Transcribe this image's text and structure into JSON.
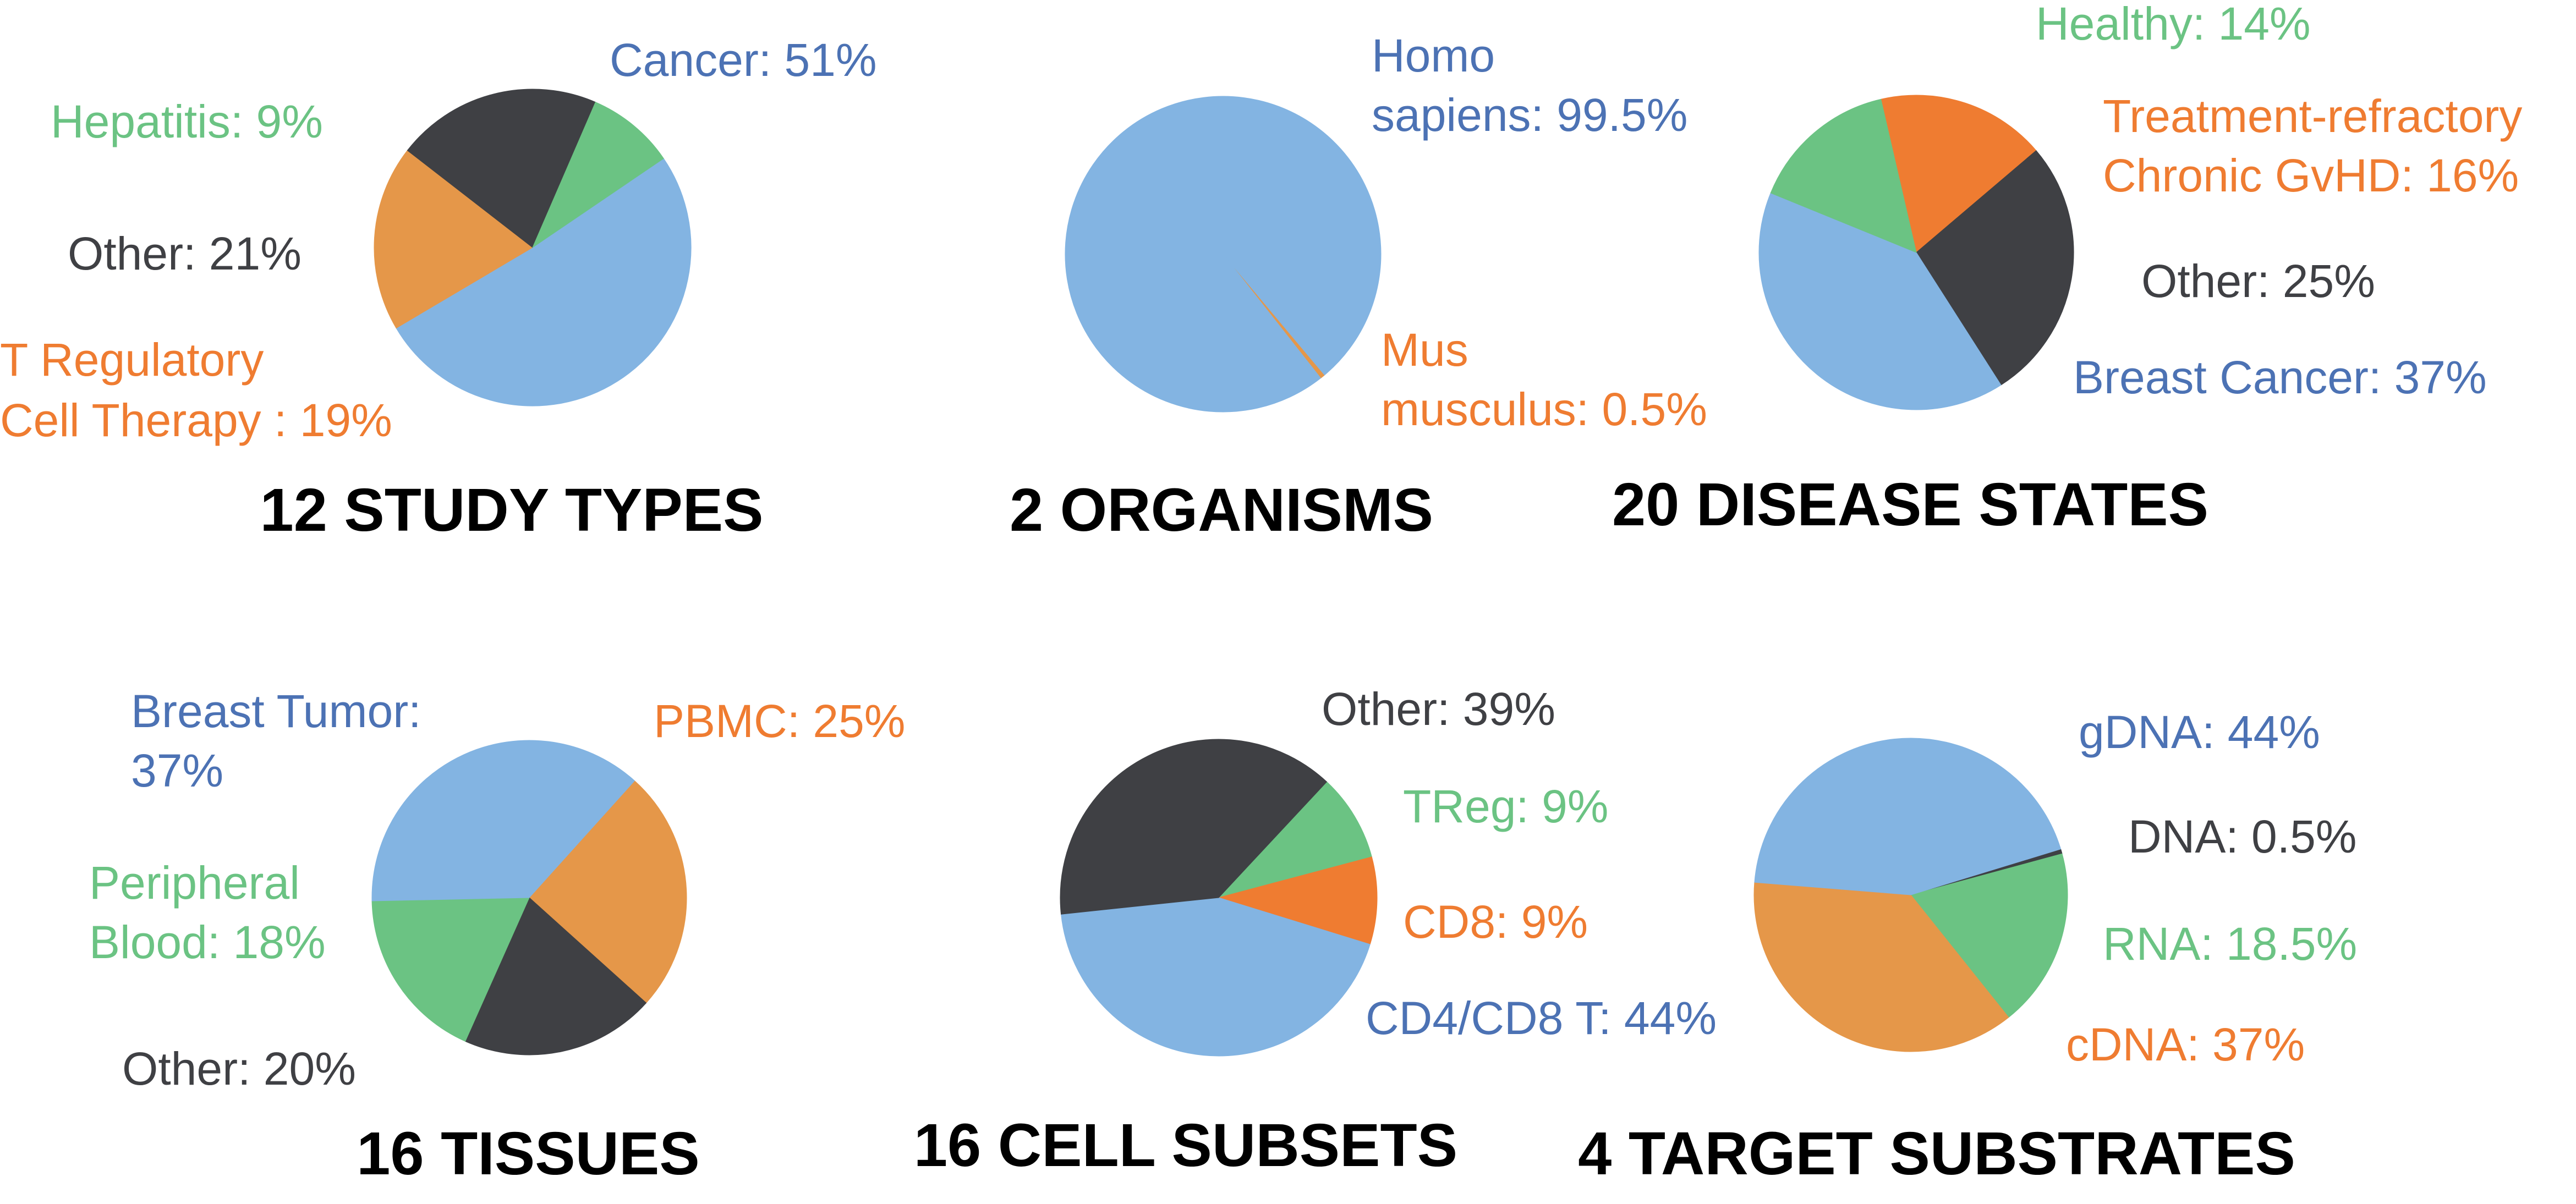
{
  "colors": {
    "blue": "#83b4e2",
    "orange": "#e59749",
    "bright_orange": "#ef7c31",
    "green": "#6bc383",
    "dark": "#3f4044",
    "label_blue": "#4c72b4",
    "label_orange": "#ef7c31",
    "label_green": "#6bc383",
    "label_dark": "#3f4044"
  },
  "chart_data": [
    {
      "type": "pie",
      "title": "12 STUDY TYPES",
      "slices": [
        {
          "label": "Cancer: 51%",
          "value": 51,
          "color": "blue"
        },
        {
          "label": "T Regulatory Cell Therapy : 19%",
          "value": 19,
          "color": "orange"
        },
        {
          "label": "Other: 21%",
          "value": 21,
          "color": "dark"
        },
        {
          "label": "Hepatitis: 9%",
          "value": 9,
          "color": "green"
        }
      ]
    },
    {
      "type": "pie",
      "title": "2 ORGANISMS",
      "slices": [
        {
          "label": "Mus musculus: 0.5%",
          "value": 0.5,
          "color": "orange"
        },
        {
          "label": "Homo sapiens: 99.5%",
          "value": 99.5,
          "color": "blue"
        }
      ]
    },
    {
      "type": "pie",
      "title": "20 DISEASE STATES",
      "slices": [
        {
          "label": "Treatment-refractory Chronic GvHD: 16%",
          "value": 16,
          "color": "bright_orange"
        },
        {
          "label": "Other: 25%",
          "value": 25,
          "color": "dark"
        },
        {
          "label": "Breast Cancer: 37%",
          "value": 37,
          "color": "blue"
        },
        {
          "label": "Healthy: 14%",
          "value": 14,
          "color": "green"
        }
      ]
    },
    {
      "type": "pie",
      "title": "16 TISSUES",
      "slices": [
        {
          "label": "PBMC: 25%",
          "value": 25,
          "color": "orange"
        },
        {
          "label": "Other: 20%",
          "value": 20,
          "color": "dark"
        },
        {
          "label": "Peripheral Blood: 18%",
          "value": 18,
          "color": "green"
        },
        {
          "label": "Breast Tumor: 37%",
          "value": 37,
          "color": "blue"
        }
      ]
    },
    {
      "type": "pie",
      "title": "16 CELL SUBSETS",
      "slices": [
        {
          "label": "TReg: 9%",
          "value": 9,
          "color": "green"
        },
        {
          "label": "CD8: 9%",
          "value": 9,
          "color": "bright_orange"
        },
        {
          "label": "CD4/CD8 T: 44%",
          "value": 44,
          "color": "blue"
        },
        {
          "label": "Other: 39%",
          "value": 39,
          "color": "dark"
        }
      ]
    },
    {
      "type": "pie",
      "title": "4 TARGET SUBSTRATES",
      "slices": [
        {
          "label": "DNA: 0.5%",
          "value": 0.5,
          "color": "dark"
        },
        {
          "label": "RNA: 18.5%",
          "value": 18.5,
          "color": "green"
        },
        {
          "label": "cDNA: 37%",
          "value": 37,
          "color": "orange"
        },
        {
          "label": "gDNA: 44%",
          "value": 44,
          "color": "blue"
        }
      ]
    }
  ]
}
